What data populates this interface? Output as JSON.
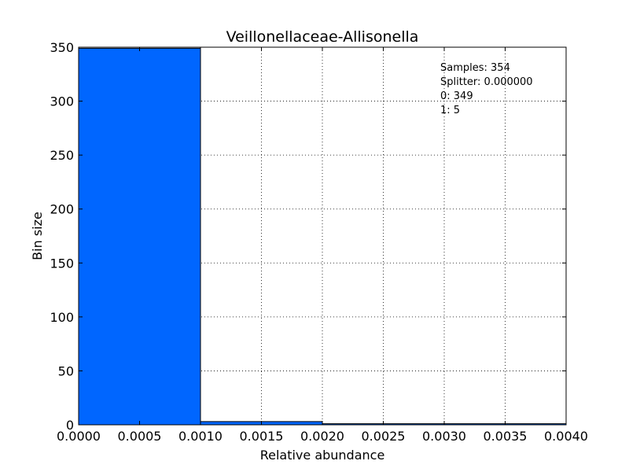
{
  "chart_data": {
    "type": "bar",
    "title": "Veillonellaceae-Allisonella",
    "xlabel": "Relative abundance",
    "ylabel": "Bin size",
    "xlim": [
      0.0,
      0.004
    ],
    "ylim": [
      0,
      350
    ],
    "grid": true,
    "bar_color": "#0066ff",
    "bins": [
      {
        "x0": 0.0,
        "x1": 0.001,
        "count": 349
      },
      {
        "x0": 0.001,
        "x1": 0.002,
        "count": 3
      },
      {
        "x0": 0.002,
        "x1": 0.003,
        "count": 1
      },
      {
        "x0": 0.003,
        "x1": 0.004,
        "count": 1
      }
    ],
    "x_ticks": [
      "0.0000",
      "0.0005",
      "0.0010",
      "0.0015",
      "0.0020",
      "0.0025",
      "0.0030",
      "0.0035",
      "0.0040"
    ],
    "y_ticks": [
      "0",
      "50",
      "100",
      "150",
      "200",
      "250",
      "300",
      "350"
    ],
    "annotations": [
      "Samples: 354",
      "Splitter: 0.000000",
      "0: 349",
      "1: 5"
    ]
  }
}
